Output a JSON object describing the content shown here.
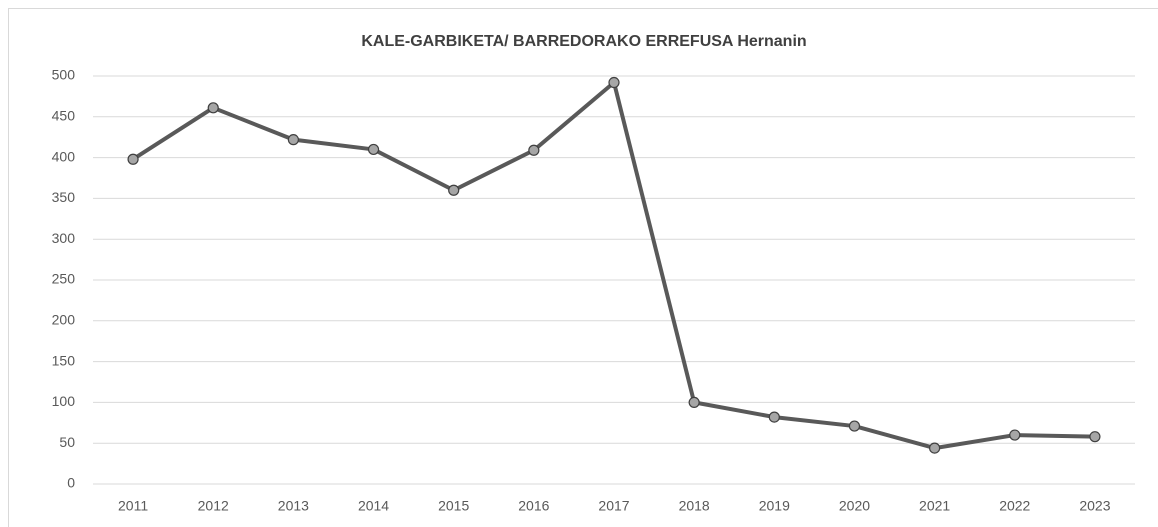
{
  "chart_data": {
    "type": "line",
    "title": "KALE-GARBIKETA/ BARREDORAKO ERREFUSA Hernanin",
    "categories": [
      "2011",
      "2012",
      "2013",
      "2014",
      "2015",
      "2016",
      "2017",
      "2018",
      "2019",
      "2020",
      "2021",
      "2022",
      "2023"
    ],
    "values": [
      398,
      461,
      422,
      410,
      360,
      409,
      492,
      100,
      82,
      71,
      44,
      60,
      58
    ],
    "color": "#595959",
    "marker_color": "#a6a6a6",
    "ylim": [
      0,
      500
    ],
    "yticks": [
      0,
      50,
      100,
      150,
      200,
      250,
      300,
      350,
      400,
      450,
      500
    ],
    "grid": true
  }
}
